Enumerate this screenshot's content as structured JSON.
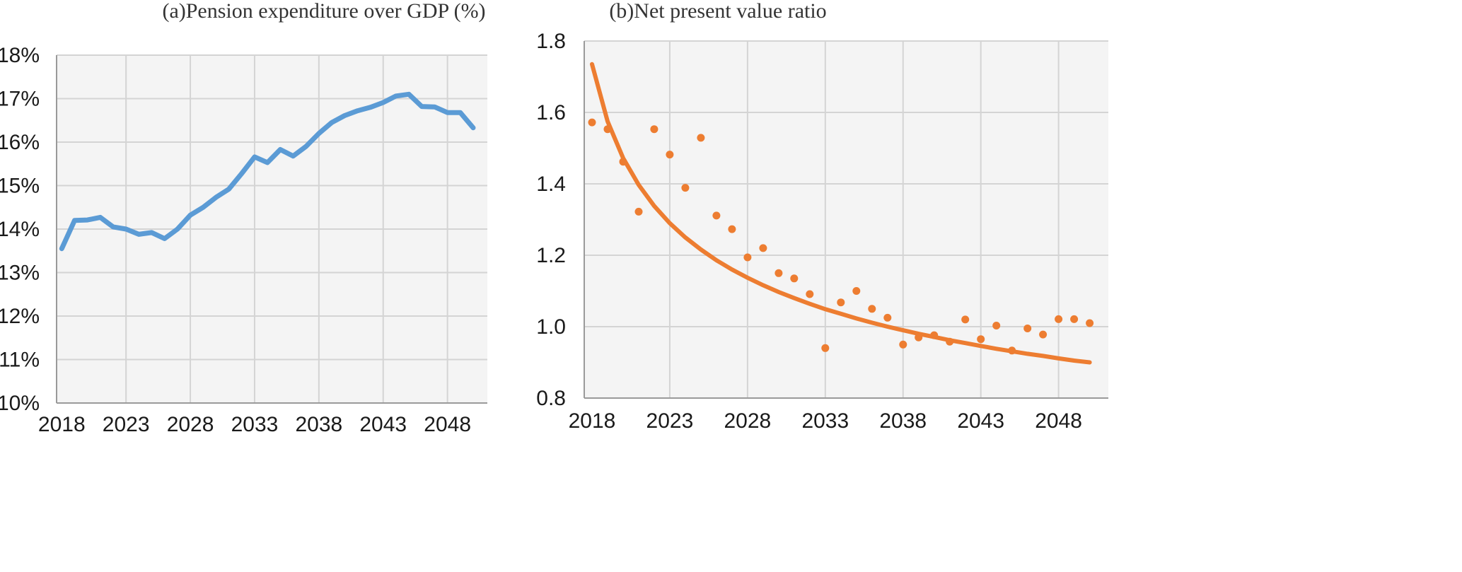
{
  "chart_data": [
    {
      "type": "line",
      "title": "(a)Pension expenditure over GDP (%)",
      "xlabel": "",
      "ylabel": "",
      "x_ticks": [
        "2018",
        "2023",
        "2028",
        "2033",
        "2038",
        "2043",
        "2048"
      ],
      "y_ticks": [
        "10%",
        "11%",
        "12%",
        "13%",
        "14%",
        "15%",
        "16%",
        "17%",
        "18%"
      ],
      "xlim": [
        2017.6,
        2051.1
      ],
      "ylim": [
        10,
        18
      ],
      "grid": true,
      "legend": "none",
      "line_color": "#5b9bd5",
      "series": [
        {
          "x": [
            2018,
            2019,
            2020,
            2021,
            2022,
            2023,
            2024,
            2025,
            2026,
            2027,
            2028,
            2029,
            2030,
            2031,
            2032,
            2033,
            2034,
            2035,
            2036,
            2037,
            2038,
            2039,
            2040,
            2041,
            2042,
            2043,
            2044,
            2045,
            2046,
            2047,
            2048,
            2049,
            2050
          ],
          "values": [
            13.55,
            14.2,
            14.21,
            14.27,
            14.05,
            14.0,
            13.88,
            13.92,
            13.78,
            14.0,
            14.32,
            14.5,
            14.73,
            14.92,
            15.28,
            15.66,
            15.53,
            15.83,
            15.68,
            15.9,
            16.2,
            16.45,
            16.61,
            16.72,
            16.8,
            16.91,
            17.06,
            17.1,
            16.82,
            16.81,
            16.68,
            16.68,
            16.33
          ]
        }
      ]
    },
    {
      "type": "scatter",
      "title": "(b)Net present value ratio",
      "xlabel": "",
      "ylabel": "",
      "x_ticks": [
        "2018",
        "2023",
        "2028",
        "2033",
        "2038",
        "2043",
        "2048"
      ],
      "y_ticks": [
        "0.8",
        "1.0",
        "1.2",
        "1.4",
        "1.6",
        "1.8"
      ],
      "xlim": [
        2017.5,
        2051.2
      ],
      "ylim": [
        0.8,
        1.8
      ],
      "grid": true,
      "legend": "none",
      "point_color": "#ed7d31",
      "series": [
        {
          "x": [
            2018,
            2019,
            2020,
            2021,
            2022,
            2023,
            2024,
            2025,
            2026,
            2027,
            2028,
            2029,
            2030,
            2031,
            2032,
            2033,
            2034,
            2035,
            2036,
            2037,
            2038,
            2039,
            2040,
            2041,
            2042,
            2043,
            2044,
            2045,
            2046,
            2047,
            2048,
            2049,
            2050
          ],
          "values": [
            1.572,
            1.553,
            1.462,
            1.322,
            1.553,
            1.482,
            1.389,
            1.529,
            1.311,
            1.273,
            1.194,
            1.22,
            1.15,
            1.135,
            1.091,
            0.94,
            1.068,
            1.1,
            1.05,
            1.025,
            0.95,
            0.97,
            0.976,
            0.958,
            1.02,
            0.965,
            1.003,
            0.933,
            0.995,
            0.978,
            1.021,
            1.021,
            1.01
          ]
        }
      ],
      "trendline": {
        "type": "power-fit",
        "x": [
          2018,
          2019,
          2020,
          2021,
          2022,
          2023,
          2024,
          2025,
          2026,
          2027,
          2028,
          2029,
          2030,
          2031,
          2032,
          2033,
          2034,
          2035,
          2036,
          2037,
          2038,
          2039,
          2040,
          2041,
          2042,
          2043,
          2044,
          2045,
          2046,
          2047,
          2048,
          2049,
          2050
        ],
        "values": [
          1.735,
          1.575,
          1.472,
          1.397,
          1.338,
          1.29,
          1.25,
          1.216,
          1.186,
          1.16,
          1.137,
          1.116,
          1.097,
          1.08,
          1.064,
          1.049,
          1.036,
          1.023,
          1.011,
          1.0,
          0.99,
          0.98,
          0.971,
          0.962,
          0.954,
          0.946,
          0.938,
          0.931,
          0.924,
          0.918,
          0.911,
          0.905,
          0.9
        ]
      }
    }
  ]
}
